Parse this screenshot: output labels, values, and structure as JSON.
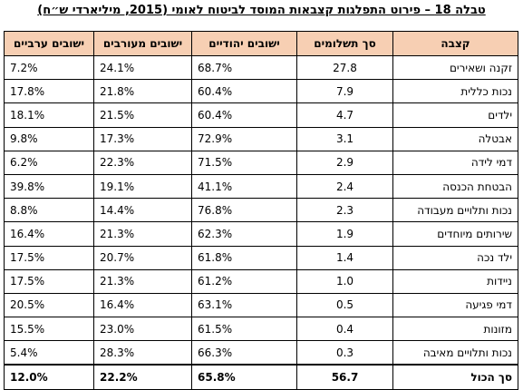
{
  "caption": "טבלה 18 – פירוט התפלגות קצבאות המוסד לביטוח לאומי (2015, מיליארדי ש״ח)",
  "headers": {
    "category": "קצבה",
    "payments": "סך תשלומים",
    "jewish": "ישובים יהודיים",
    "mixed": "ישובים מעורבים",
    "arab": "ישובים ערביים"
  },
  "rows": [
    {
      "category": "זקנה ושאירים",
      "payments": "27.8",
      "jewish": "68.7%",
      "mixed": "24.1%",
      "arab": "7.2%"
    },
    {
      "category": "נכות כללית",
      "payments": "7.9",
      "jewish": "60.4%",
      "mixed": "21.8%",
      "arab": "17.8%"
    },
    {
      "category": "ילדים",
      "payments": "4.7",
      "jewish": "60.4%",
      "mixed": "21.5%",
      "arab": "18.1%"
    },
    {
      "category": "אבטלה",
      "payments": "3.1",
      "jewish": "72.9%",
      "mixed": "17.3%",
      "arab": "9.8%"
    },
    {
      "category": "דמי לידה",
      "payments": "2.9",
      "jewish": "71.5%",
      "mixed": "22.3%",
      "arab": "6.2%"
    },
    {
      "category": "הבטחת הכנסה",
      "payments": "2.4",
      "jewish": "41.1%",
      "mixed": "19.1%",
      "arab": "39.8%"
    },
    {
      "category": "נכות ותלויים מעבודה",
      "payments": "2.3",
      "jewish": "76.8%",
      "mixed": "14.4%",
      "arab": "8.8%"
    },
    {
      "category": "שירותים מיוחדים",
      "payments": "1.9",
      "jewish": "62.3%",
      "mixed": "21.3%",
      "arab": "16.4%"
    },
    {
      "category": "ילד נכה",
      "payments": "1.4",
      "jewish": "61.8%",
      "mixed": "20.7%",
      "arab": "17.5%"
    },
    {
      "category": "ניידות",
      "payments": "1.0",
      "jewish": "61.2%",
      "mixed": "21.3%",
      "arab": "17.5%"
    },
    {
      "category": "דמי פגיעה",
      "payments": "0.5",
      "jewish": "63.1%",
      "mixed": "16.4%",
      "arab": "20.5%"
    },
    {
      "category": "מזונות",
      "payments": "0.4",
      "jewish": "61.5%",
      "mixed": "23.0%",
      "arab": "15.5%"
    },
    {
      "category": "נכות ותלויים מאיבה",
      "payments": "0.3",
      "jewish": "66.3%",
      "mixed": "28.3%",
      "arab": "5.4%"
    }
  ],
  "total": {
    "category": "סך הכול",
    "payments": "56.7",
    "jewish": "65.8%",
    "mixed": "22.2%",
    "arab": "12.0%"
  },
  "colors": {
    "header_bg": "#f7cfb3"
  }
}
